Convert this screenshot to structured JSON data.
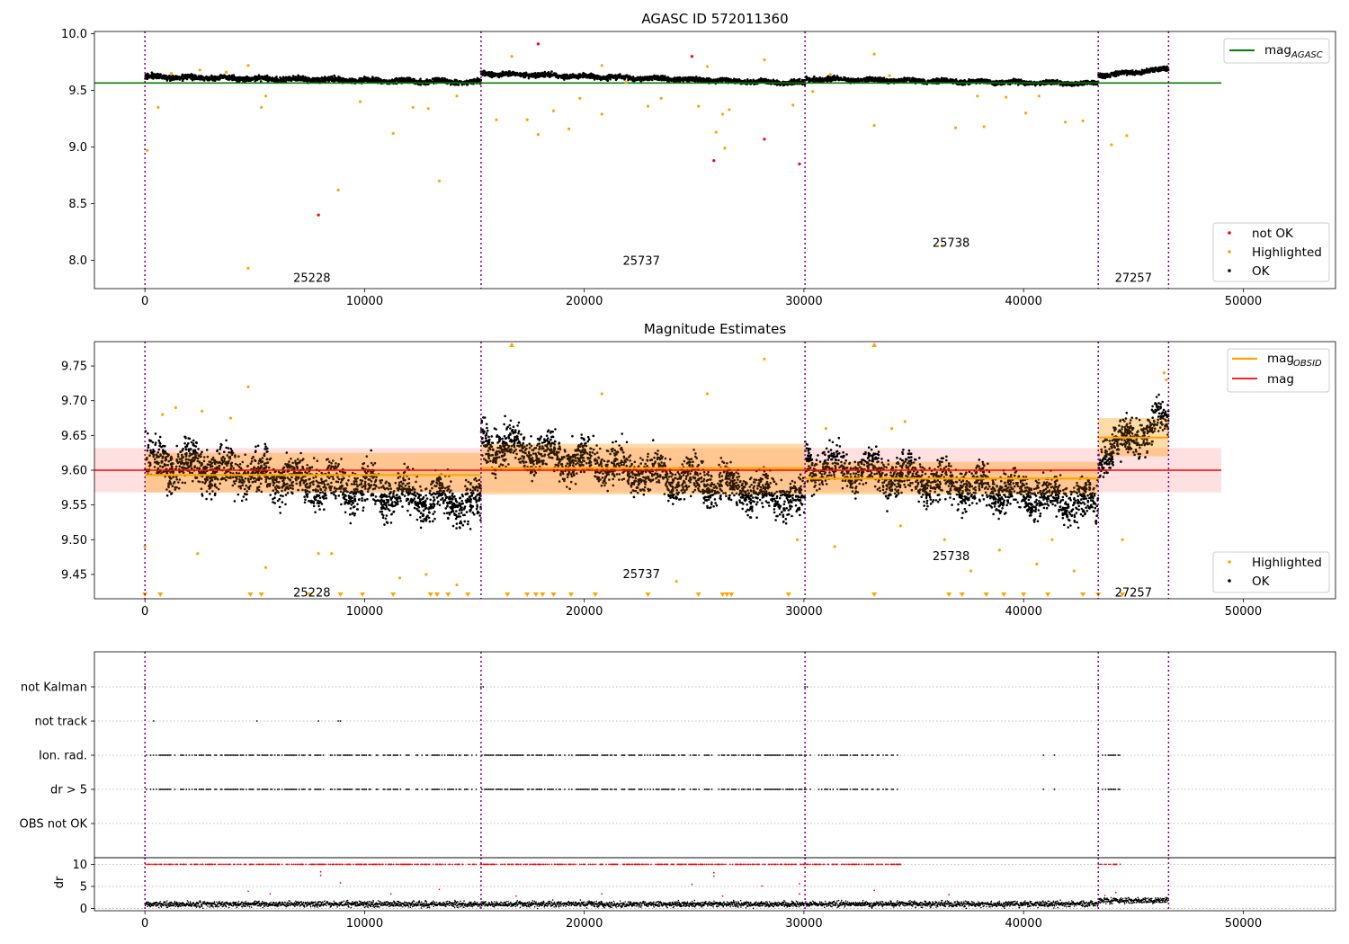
{
  "chart_data": [
    {
      "type": "scatter",
      "title": "AGASC ID 572011360",
      "xlim": [
        -2300,
        54200
      ],
      "ylim": [
        7.75,
        10.02
      ],
      "xticks": [
        0,
        10000,
        20000,
        30000,
        40000,
        50000
      ],
      "xtick_labels": [
        "0",
        "10000",
        "20000",
        "30000",
        "40000",
        "50000"
      ],
      "yticks": [
        8.0,
        8.5,
        9.0,
        9.5,
        10.0
      ],
      "ytick_labels": [
        "8.0",
        "8.5",
        "9.0",
        "9.5",
        "10.0"
      ],
      "obsid_boundaries": [
        0,
        15300,
        30050,
        43400,
        46600
      ],
      "obsid_labels": [
        {
          "text": "25228",
          "x": 7600,
          "y": 7.85
        },
        {
          "text": "25737",
          "x": 22600,
          "y": 8.0
        },
        {
          "text": "25738",
          "x": 36700,
          "y": 8.16
        },
        {
          "text": "27257",
          "x": 45000,
          "y": 7.85
        }
      ],
      "reference_lines": [
        {
          "name": "mag_AGASC",
          "y": 9.565,
          "x": [
            -2300,
            49000
          ],
          "color": "#008000"
        }
      ],
      "ok_segments": [
        {
          "x": [
            0,
            15300
          ],
          "y": [
            9.62,
            9.57
          ],
          "spread": 0.05
        },
        {
          "x": [
            15300,
            30050
          ],
          "y": [
            9.65,
            9.565
          ],
          "spread": 0.045
        },
        {
          "x": [
            30050,
            43400
          ],
          "y": [
            9.6,
            9.56
          ],
          "spread": 0.045
        },
        {
          "x": [
            43400,
            46600
          ],
          "y": [
            9.63,
            9.69
          ],
          "spread": 0.045
        }
      ],
      "series": [
        {
          "name": "not OK",
          "color": "#ff0000",
          "points": [
            [
              17900,
              9.91
            ],
            [
              24900,
              9.8
            ],
            [
              28200,
              9.07
            ],
            [
              25900,
              8.88
            ],
            [
              29800,
              8.85
            ],
            [
              7900,
              8.4
            ]
          ]
        },
        {
          "name": "Highlighted",
          "color": "#ffa500",
          "points": [
            [
              100,
              8.97
            ],
            [
              600,
              9.35
            ],
            [
              4700,
              7.93
            ],
            [
              8800,
              8.62
            ],
            [
              11300,
              9.12
            ],
            [
              13400,
              8.7
            ],
            [
              5300,
              9.35
            ],
            [
              5500,
              9.45
            ],
            [
              9800,
              9.4
            ],
            [
              12200,
              9.35
            ],
            [
              12900,
              9.34
            ],
            [
              14200,
              9.45
            ],
            [
              16000,
              9.24
            ],
            [
              16700,
              9.8
            ],
            [
              17400,
              9.24
            ],
            [
              17900,
              9.11
            ],
            [
              18600,
              9.32
            ],
            [
              19300,
              9.16
            ],
            [
              19800,
              9.43
            ],
            [
              20800,
              9.29
            ],
            [
              20800,
              9.72
            ],
            [
              21900,
              9.57
            ],
            [
              22900,
              9.36
            ],
            [
              23500,
              9.43
            ],
            [
              25200,
              9.36
            ],
            [
              25600,
              9.71
            ],
            [
              26000,
              9.13
            ],
            [
              26300,
              9.29
            ],
            [
              26400,
              8.99
            ],
            [
              26600,
              9.33
            ],
            [
              28200,
              9.77
            ],
            [
              29500,
              9.37
            ],
            [
              30400,
              9.49
            ],
            [
              33200,
              9.82
            ],
            [
              33200,
              9.19
            ],
            [
              36300,
              8.13
            ],
            [
              36900,
              9.17
            ],
            [
              37900,
              9.45
            ],
            [
              38200,
              9.18
            ],
            [
              39200,
              9.44
            ],
            [
              40100,
              9.3
            ],
            [
              40700,
              9.45
            ],
            [
              41900,
              9.22
            ],
            [
              42700,
              9.23
            ],
            [
              44000,
              9.02
            ],
            [
              44700,
              9.1
            ],
            [
              1200,
              9.65
            ],
            [
              2500,
              9.68
            ],
            [
              3700,
              9.66
            ],
            [
              4700,
              9.72
            ],
            [
              31200,
              9.64
            ],
            [
              33900,
              9.63
            ]
          ]
        },
        {
          "name": "OK",
          "color": "#000000"
        }
      ],
      "legends": [
        {
          "entries": [
            "mag_AGASC"
          ],
          "position": "top-right"
        },
        {
          "entries": [
            "not OK",
            "Highlighted",
            "OK"
          ],
          "position": "lower-right"
        }
      ]
    },
    {
      "type": "scatter",
      "title": "Magnitude Estimates",
      "xlim": [
        -2300,
        54200
      ],
      "ylim": [
        9.415,
        9.785
      ],
      "xticks": [
        0,
        10000,
        20000,
        30000,
        40000,
        50000
      ],
      "xtick_labels": [
        "0",
        "10000",
        "20000",
        "30000",
        "40000",
        "50000"
      ],
      "yticks": [
        9.45,
        9.5,
        9.55,
        9.6,
        9.65,
        9.7,
        9.75
      ],
      "ytick_labels": [
        "9.45",
        "9.50",
        "9.55",
        "9.60",
        "9.65",
        "9.70",
        "9.75"
      ],
      "obsid_boundaries": [
        0,
        15300,
        30050,
        43400,
        46600
      ],
      "obsid_labels": [
        {
          "text": "25228",
          "x": 7600,
          "y": 9.425
        },
        {
          "text": "25737",
          "x": 22600,
          "y": 9.451
        },
        {
          "text": "25738",
          "x": 36700,
          "y": 9.477
        },
        {
          "text": "27257",
          "x": 45000,
          "y": 9.425
        }
      ],
      "mag": {
        "name": "mag",
        "value": 9.6,
        "band": [
          9.568,
          9.632
        ],
        "x": [
          -2300,
          49000
        ],
        "color": "#ff0000"
      },
      "mag_obsid": [
        {
          "x": [
            0,
            15300
          ],
          "value": 9.593,
          "band": [
            9.568,
            9.625
          ]
        },
        {
          "x": [
            15300,
            30050
          ],
          "value": 9.603,
          "band": [
            9.565,
            9.638
          ]
        },
        {
          "x": [
            30050,
            43400
          ],
          "value": 9.588,
          "band": [
            9.565,
            9.612
          ]
        },
        {
          "x": [
            43400,
            46600
          ],
          "value": 9.647,
          "band": [
            9.62,
            9.675
          ]
        }
      ],
      "ok_segments": [
        {
          "x": [
            0,
            15300
          ],
          "y": [
            9.615,
            9.55
          ],
          "spread": 0.07
        },
        {
          "x": [
            15300,
            30050
          ],
          "y": [
            9.64,
            9.555
          ],
          "spread": 0.065
        },
        {
          "x": [
            30050,
            43400
          ],
          "y": [
            9.61,
            9.55
          ],
          "spread": 0.065
        },
        {
          "x": [
            43400,
            46600
          ],
          "y": [
            9.62,
            9.675
          ],
          "spread": 0.065
        }
      ],
      "series": [
        {
          "name": "Highlighted",
          "color": "#ffa500",
          "points": [
            [
              0,
              9.49
            ],
            [
              2400,
              9.48
            ],
            [
              4700,
              9.72
            ],
            [
              5500,
              9.46
            ],
            [
              7900,
              9.48
            ],
            [
              8500,
              9.48
            ],
            [
              11600,
              9.445
            ],
            [
              12800,
              9.45
            ],
            [
              14200,
              9.435
            ],
            [
              16700,
              9.78
            ],
            [
              20800,
              9.71
            ],
            [
              24200,
              9.44
            ],
            [
              25600,
              9.71
            ],
            [
              28200,
              9.76
            ],
            [
              29700,
              9.5
            ],
            [
              31400,
              9.49
            ],
            [
              33200,
              9.78
            ],
            [
              34400,
              9.52
            ],
            [
              36400,
              9.5
            ],
            [
              37600,
              9.455
            ],
            [
              38900,
              9.485
            ],
            [
              40600,
              9.465
            ],
            [
              41300,
              9.5
            ],
            [
              42300,
              9.455
            ],
            [
              44500,
              9.5
            ],
            [
              46400,
              9.74
            ],
            [
              46500,
              9.73
            ],
            [
              800,
              9.68
            ],
            [
              1400,
              9.69
            ],
            [
              2600,
              9.685
            ],
            [
              3900,
              9.675
            ],
            [
              31000,
              9.66
            ],
            [
              34000,
              9.66
            ],
            [
              34600,
              9.67
            ]
          ]
        },
        {
          "name": "OK",
          "color": "#000000"
        }
      ],
      "below_axis_markers_x": [
        0,
        700,
        4800,
        5300,
        7500,
        8900,
        9900,
        11300,
        13000,
        13300,
        13800,
        14700,
        16500,
        17400,
        17800,
        18100,
        18600,
        19400,
        20500,
        22900,
        25200,
        26300,
        26500,
        26700,
        29300,
        33200,
        36600,
        37200,
        38300,
        39100,
        40000,
        41100,
        42700,
        43400,
        44500
      ],
      "legends": [
        {
          "entries": [
            "mag_OBSID",
            "mag"
          ],
          "position": "top-right"
        },
        {
          "entries": [
            "Highlighted",
            "OK"
          ],
          "position": "lower-right"
        }
      ]
    },
    {
      "type": "scatter",
      "xlim": [
        -2300,
        54200
      ],
      "yticklabels": [
        "not Kalman",
        "not track",
        "Ion. rad.",
        "dr > 5",
        "OBS not OK"
      ],
      "obsid_boundaries": [
        0,
        15300,
        30050,
        43400,
        46600
      ],
      "flags": {
        "not_kalman_x": [
          0,
          15300,
          15400,
          30050,
          30150,
          43400
        ],
        "not_track_x": [
          400,
          5100,
          7900,
          8800,
          8900
        ],
        "ion_dr_ranges": [
          [
            0,
            34400
          ],
          [
            43400,
            44400
          ]
        ],
        "ion_dr_extra_x": [
          40900,
          41400
        ]
      }
    },
    {
      "type": "scatter",
      "ylabel": "dr",
      "xlim": [
        -2300,
        54200
      ],
      "ylim": [
        -0.5,
        11.5
      ],
      "yticks": [
        0,
        5,
        10
      ],
      "ytick_labels": [
        "0",
        "5",
        "10"
      ],
      "xticks": [
        0,
        10000,
        20000,
        30000,
        40000,
        50000
      ],
      "xtick_labels": [
        "0",
        "10000",
        "20000",
        "30000",
        "40000",
        "50000"
      ],
      "obsid_boundaries": [
        0,
        15300,
        30050,
        43400,
        46600
      ],
      "series": [
        {
          "name": "dr OK",
          "color": "#000000",
          "baseline": 1.0,
          "x_range": [
            0,
            46600
          ]
        },
        {
          "name": "dr > 5",
          "color": "#ff0000",
          "value": 10,
          "ranges": [
            [
              0,
              34400
            ],
            [
              43400,
              44400
            ]
          ],
          "extra_points": [
            [
              8000,
              7.5
            ],
            [
              8000,
              8.3
            ],
            [
              8900,
              5.8
            ],
            [
              11200,
              3.3
            ],
            [
              13400,
              4.3
            ],
            [
              16900,
              2.8
            ],
            [
              20800,
              3.3
            ],
            [
              24900,
              5.5
            ],
            [
              25900,
              7.3
            ],
            [
              25900,
              8.1
            ],
            [
              26300,
              2.8
            ],
            [
              28100,
              5.1
            ],
            [
              29800,
              5.6
            ],
            [
              29800,
              3.3
            ],
            [
              33200,
              4.1
            ],
            [
              36600,
              3.1
            ],
            [
              43700,
              2.9
            ],
            [
              44200,
              3.6
            ],
            [
              5700,
              3.3
            ],
            [
              4700,
              3.9
            ]
          ]
        }
      ]
    }
  ],
  "legend_texts": {
    "mag_agasc_main": "mag",
    "mag_agasc_sub": "AGASC",
    "not_ok": "not OK",
    "highlighted": "Highlighted",
    "ok": "OK",
    "mag_obsid_main": "mag",
    "mag_obsid_sub": "OBSID",
    "mag": "mag"
  },
  "colors": {
    "ok": "#000000",
    "highlighted": "#ffa500",
    "not_ok": "#ff0000",
    "agasc_line": "#008000",
    "obsid_line": "#800080"
  }
}
